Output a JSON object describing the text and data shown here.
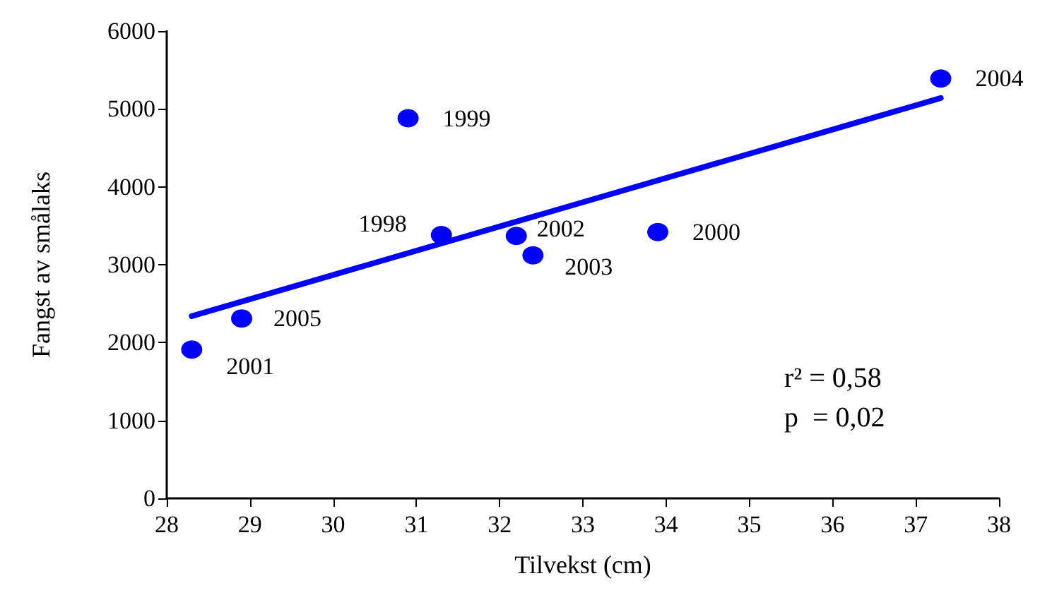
{
  "chart_data": {
    "type": "scatter",
    "xlabel": "Tilvekst (cm)",
    "ylabel": "Fangst av smålaks",
    "xlim": [
      28,
      38
    ],
    "xticks": [
      28,
      29,
      30,
      31,
      32,
      33,
      34,
      35,
      36,
      37,
      38
    ],
    "ylim": [
      0,
      6000
    ],
    "yticks": [
      0,
      1000,
      2000,
      3000,
      4000,
      5000,
      6000
    ],
    "grid": false,
    "marker": "circle",
    "series": [
      {
        "name": "2001",
        "color": "#0000ff",
        "x": [
          28.3
        ],
        "values": [
          1910
        ]
      },
      {
        "name": "2005",
        "color": "#0000ff",
        "x": [
          28.9
        ],
        "values": [
          2310
        ]
      },
      {
        "name": "1999",
        "color": "#0000ff",
        "x": [
          30.9
        ],
        "values": [
          4880
        ]
      },
      {
        "name": "1998",
        "color": "#0000ff",
        "x": [
          31.3
        ],
        "values": [
          3380
        ]
      },
      {
        "name": "2002",
        "color": "#0000ff",
        "x": [
          32.2
        ],
        "values": [
          3370
        ]
      },
      {
        "name": "2003",
        "color": "#0000ff",
        "x": [
          32.4
        ],
        "values": [
          3120
        ]
      },
      {
        "name": "2000",
        "color": "#0000ff",
        "x": [
          33.9
        ],
        "values": [
          3420
        ]
      },
      {
        "name": "2004",
        "color": "#0000ff",
        "x": [
          37.3
        ],
        "values": [
          5390
        ]
      },
      {
        "type": "line",
        "color": "#0000ff",
        "marker": "none",
        "line_style": "solid",
        "x": [
          28.3,
          37.3
        ],
        "values": [
          2340,
          5140
        ]
      }
    ],
    "annotations": [
      "r² = 0,58",
      "p  = 0,02"
    ]
  }
}
